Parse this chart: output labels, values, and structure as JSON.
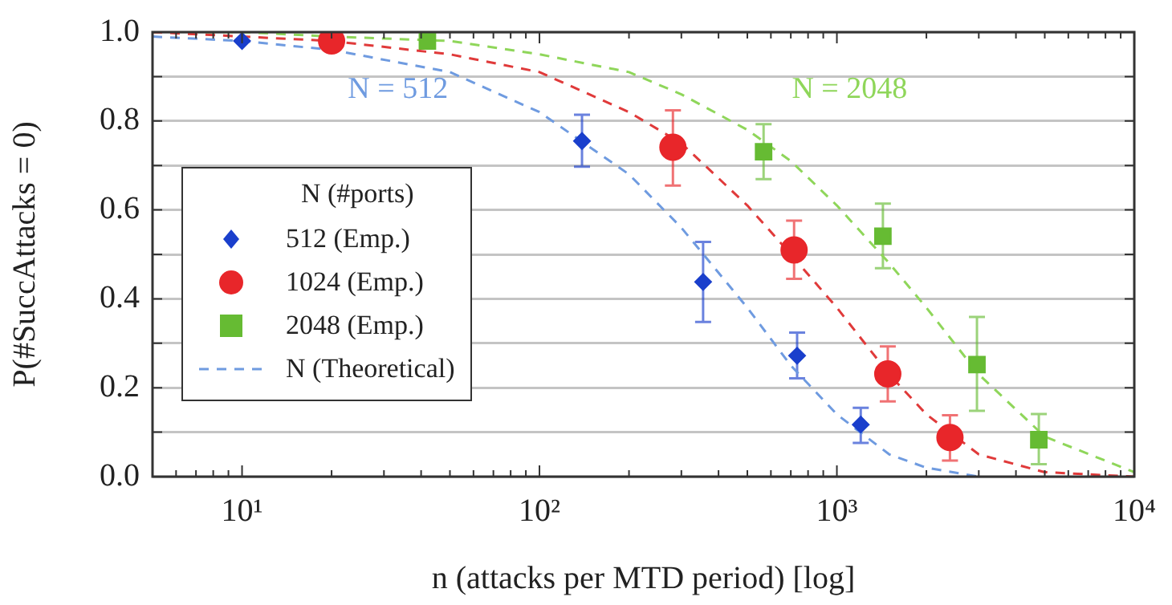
{
  "chart_data": {
    "type": "scatter",
    "xlabel": "n (attacks per MTD period) [log]",
    "ylabel": "P(#SuccAttacks = 0)",
    "log": "x",
    "grid": "y",
    "legend": "left",
    "legend_title": "N (#ports)",
    "xlim": [
      5,
      10000
    ],
    "xticks": [
      {
        "value": 5,
        "label": null
      },
      {
        "value": 6,
        "label": null
      },
      {
        "value": 7,
        "label": null
      },
      {
        "value": 8,
        "label": null
      },
      {
        "value": 9,
        "label": null
      },
      {
        "value": 10,
        "label": "10¹"
      },
      {
        "value": 20,
        "label": null
      },
      {
        "value": 30,
        "label": null
      },
      {
        "value": 40,
        "label": null
      },
      {
        "value": 50,
        "label": null
      },
      {
        "value": 60,
        "label": null
      },
      {
        "value": 70,
        "label": null
      },
      {
        "value": 80,
        "label": null
      },
      {
        "value": 90,
        "label": null
      },
      {
        "value": 100,
        "label": "10²"
      },
      {
        "value": 200,
        "label": null
      },
      {
        "value": 300,
        "label": null
      },
      {
        "value": 400,
        "label": null
      },
      {
        "value": 500,
        "label": null
      },
      {
        "value": 600,
        "label": null
      },
      {
        "value": 700,
        "label": null
      },
      {
        "value": 800,
        "label": null
      },
      {
        "value": 900,
        "label": null
      },
      {
        "value": 1000,
        "label": "10³"
      },
      {
        "value": 2000,
        "label": null
      },
      {
        "value": 3000,
        "label": null
      },
      {
        "value": 4000,
        "label": null
      },
      {
        "value": 5000,
        "label": null
      },
      {
        "value": 6000,
        "label": null
      },
      {
        "value": 7000,
        "label": null
      },
      {
        "value": 8000,
        "label": null
      },
      {
        "value": 9000,
        "label": null
      },
      {
        "value": 10000,
        "label": "10⁴"
      }
    ],
    "ylim": [
      0,
      1
    ],
    "yticks": [
      {
        "value": 0,
        "label": "0.0"
      },
      {
        "value": 0.1,
        "label": null
      },
      {
        "value": 0.2,
        "label": "0.2"
      },
      {
        "value": 0.3,
        "label": null
      },
      {
        "value": 0.4,
        "label": "0.4"
      },
      {
        "value": 0.5,
        "label": null
      },
      {
        "value": 0.6,
        "label": "0.6"
      },
      {
        "value": 0.7,
        "label": null
      },
      {
        "value": 0.8,
        "label": "0.8"
      },
      {
        "value": 0.9,
        "label": null
      },
      {
        "value": 1,
        "label": "1.0"
      }
    ],
    "annotations": [
      "N = 512",
      "N = 2048"
    ],
    "series": [
      {
        "name": "512 (Emp.)",
        "marker": "diamond",
        "color": "#1a3fcc",
        "x": [
          10,
          139,
          355,
          735,
          1203
        ],
        "values": [
          0.98,
          0.755,
          0.438,
          0.272,
          0.117
        ],
        "errors": [
          null,
          [
            0.697,
            0.814
          ],
          [
            0.348,
            0.528
          ],
          [
            0.221,
            0.324
          ],
          [
            0.076,
            0.155
          ]
        ]
      },
      {
        "name": "1024 (Emp.)",
        "marker": "circle",
        "color": "#e8262a",
        "x": [
          20,
          281,
          718,
          1483,
          2400
        ],
        "values": [
          0.98,
          0.741,
          0.51,
          0.231,
          0.088
        ],
        "errors": [
          null,
          [
            0.655,
            0.824
          ],
          [
            0.445,
            0.576
          ],
          [
            0.169,
            0.293
          ],
          [
            0.036,
            0.138
          ]
        ]
      },
      {
        "name": "2048 (Emp.)",
        "marker": "square",
        "color": "#66bb33",
        "x": [
          42,
          567,
          1428,
          2958,
          4775
        ],
        "values": [
          0.98,
          0.731,
          0.541,
          0.252,
          0.083
        ],
        "errors": [
          null,
          [
            0.669,
            0.793
          ],
          [
            0.469,
            0.614
          ],
          [
            0.148,
            0.359
          ],
          [
            0.028,
            0.141
          ]
        ]
      },
      {
        "name": "N (Theoretical)",
        "type": "line",
        "marker": "none",
        "line_style": "dashed",
        "color": "#6f9be0",
        "x": [
          5,
          10,
          20,
          50,
          100,
          200,
          300,
          500,
          700,
          1000,
          1500,
          2000,
          3000
        ],
        "values": [
          0.99,
          0.98,
          0.96,
          0.91,
          0.82,
          0.68,
          0.56,
          0.38,
          0.25,
          0.14,
          0.05,
          0.02,
          0.0
        ]
      },
      {
        "type": "line",
        "marker": "none",
        "line_style": "dashed",
        "color": "#e03a3a",
        "x": [
          5,
          10,
          20,
          50,
          100,
          200,
          300,
          500,
          700,
          1000,
          1500,
          2000,
          3000,
          5000,
          10000
        ],
        "values": [
          1.0,
          0.99,
          0.98,
          0.95,
          0.91,
          0.82,
          0.75,
          0.61,
          0.5,
          0.38,
          0.23,
          0.14,
          0.05,
          0.01,
          0.0
        ]
      },
      {
        "type": "line",
        "marker": "none",
        "line_style": "dashed",
        "color": "#8fd65a",
        "x": [
          5,
          10,
          20,
          50,
          100,
          200,
          300,
          500,
          700,
          1000,
          1500,
          2000,
          3000,
          5000,
          10000
        ],
        "values": [
          1.0,
          1.0,
          0.99,
          0.98,
          0.95,
          0.91,
          0.86,
          0.78,
          0.71,
          0.61,
          0.48,
          0.38,
          0.23,
          0.09,
          0.01
        ]
      }
    ]
  }
}
